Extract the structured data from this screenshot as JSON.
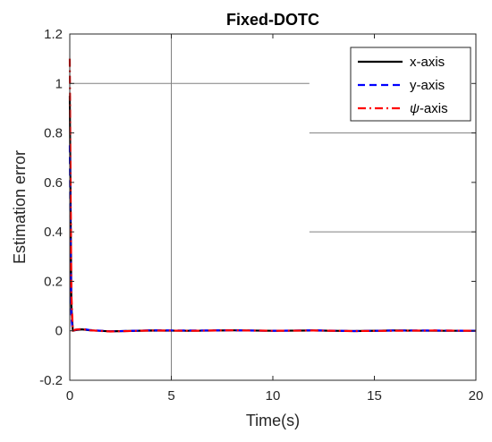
{
  "chart_data": {
    "type": "line",
    "title": "Fixed-DOTC",
    "xlabel": "Time(s)",
    "ylabel": "Estimation error",
    "xlim": [
      0,
      20
    ],
    "ylim": [
      -0.2,
      1.2
    ],
    "xticks": [
      0,
      5,
      10,
      15,
      20
    ],
    "xtick_labels": [
      "0",
      "5",
      "10",
      "15",
      "20"
    ],
    "yticks": [
      -0.2,
      0,
      0.2,
      0.4,
      0.6,
      0.8,
      1,
      1.2
    ],
    "ytick_labels": [
      "-0.2",
      "0",
      "0.2",
      "0.4",
      "0.6",
      "0.8",
      "1",
      "1.2"
    ],
    "legend_position": "top-right",
    "grid": false,
    "reference_lines": [
      {
        "orientation": "vertical",
        "x": 5,
        "y_range": [
          -0.2,
          1.2
        ],
        "color": "#808080"
      },
      {
        "orientation": "horizontal",
        "y": 1,
        "x_range": [
          0,
          11.8
        ],
        "color": "#808080"
      },
      {
        "orientation": "horizontal",
        "y": 0.8,
        "x_range": [
          11.8,
          20
        ],
        "color": "#808080"
      },
      {
        "orientation": "horizontal",
        "y": 0.4,
        "x_range": [
          11.8,
          20
        ],
        "color": "#808080"
      }
    ],
    "series": [
      {
        "name": "x-axis",
        "legend_prefix": "",
        "legend_symbol": "",
        "legend_suffix": "x-axis",
        "color": "#000000",
        "dash": "solid",
        "x": [
          0,
          0.03,
          0.08,
          0.15,
          0.3,
          0.6,
          1,
          2,
          4,
          6,
          8,
          10,
          12,
          14,
          16,
          18,
          20
        ],
        "y": [
          0.95,
          0.6,
          0.1,
          0.0,
          0.003,
          0.006,
          0.002,
          -0.002,
          0.001,
          0.0,
          0.002,
          0.0,
          0.001,
          -0.001,
          0.001,
          0.0,
          0.0
        ]
      },
      {
        "name": "y-axis",
        "legend_prefix": "",
        "legend_symbol": "",
        "legend_suffix": "y-axis",
        "color": "#0000ff",
        "dash": "dashed",
        "x": [
          0,
          0.03,
          0.08,
          0.15,
          0.3,
          0.6,
          1,
          2,
          4,
          6,
          8,
          10,
          12,
          14,
          16,
          18,
          20
        ],
        "y": [
          0.75,
          0.4,
          0.05,
          0.0,
          0.004,
          0.008,
          0.003,
          -0.002,
          0.002,
          0.001,
          0.002,
          0.0,
          0.002,
          -0.001,
          0.001,
          0.001,
          0.0
        ]
      },
      {
        "name": "ψ-axis",
        "legend_prefix": "",
        "legend_symbol": "ψ",
        "legend_suffix": "-axis",
        "color": "#ff0000",
        "dash": "dashdot",
        "x": [
          0,
          0.03,
          0.08,
          0.15,
          0.3,
          0.6,
          1,
          2,
          4,
          6,
          8,
          10,
          12,
          14,
          16,
          18,
          20
        ],
        "y": [
          1.1,
          0.7,
          0.15,
          0.0,
          0.005,
          0.007,
          0.002,
          -0.003,
          0.001,
          0.0,
          0.002,
          0.0,
          0.001,
          -0.001,
          0.0,
          0.001,
          0.0
        ]
      }
    ]
  }
}
